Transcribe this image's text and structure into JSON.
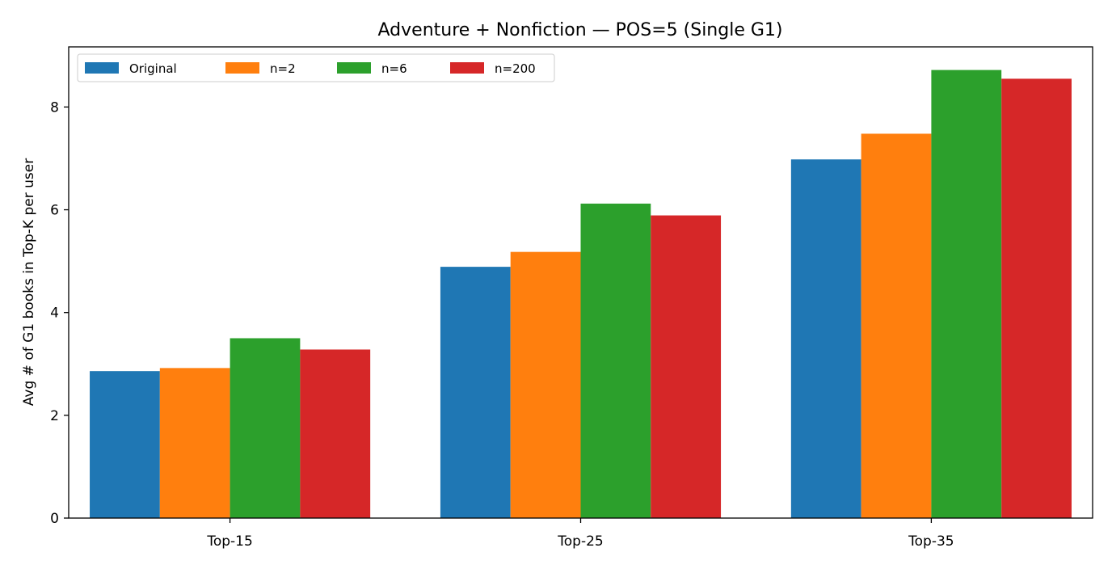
{
  "chart_data": {
    "type": "bar",
    "title": "Adventure + Nonfiction — POS=5 (Single G1)",
    "xlabel": "",
    "ylabel": "Avg # of G1 books in Top-K per user",
    "categories": [
      "Top-15",
      "Top-25",
      "Top-35"
    ],
    "ylim": [
      0,
      9.17
    ],
    "yticks": [
      0,
      2,
      4,
      6,
      8
    ],
    "grid": false,
    "legend_position": "top-left",
    "legend_columns": 4,
    "series": [
      {
        "name": "Original",
        "color": "#1f77b4",
        "values": [
          2.86,
          4.89,
          6.98
        ]
      },
      {
        "name": "n=2",
        "color": "#ff7f0e",
        "values": [
          2.92,
          5.18,
          7.48
        ]
      },
      {
        "name": "n=6",
        "color": "#2ca02c",
        "values": [
          3.5,
          6.12,
          8.72
        ]
      },
      {
        "name": "n=200",
        "color": "#d62728",
        "values": [
          3.28,
          5.89,
          8.55
        ]
      }
    ]
  }
}
